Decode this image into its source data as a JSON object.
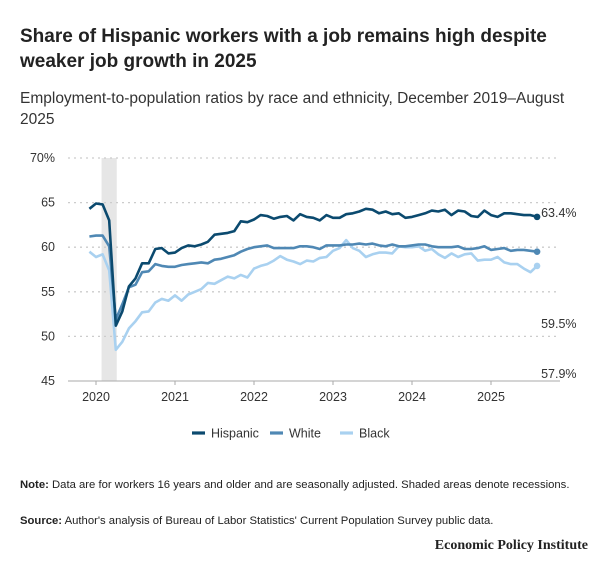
{
  "title": "Share of Hispanic workers with a job remains high despite weaker job growth in 2025",
  "subtitle": "Employment-to-population ratios by race and ethnicity, December 2019–August 2025",
  "note_label": "Note:",
  "note": " Data are for workers 16 years and older and are seasonally adjusted. Shaded areas denote recessions.",
  "source_label": "Source:",
  "source": " Author's analysis of Bureau of Labor Statistics' Current Population Survey public data.",
  "brand": "Economic Policy Institute",
  "chart_data": {
    "type": "line",
    "start": "2019-12",
    "end": "2025-08",
    "ylim": [
      45,
      70
    ],
    "yticks": [
      {
        "v": 70,
        "label": "70%"
      },
      {
        "v": 65,
        "label": "65"
      },
      {
        "v": 60,
        "label": "60"
      },
      {
        "v": 55,
        "label": "55"
      },
      {
        "v": 50,
        "label": "50"
      },
      {
        "v": 45,
        "label": "45"
      }
    ],
    "xticks": [
      "2020",
      "2021",
      "2022",
      "2023",
      "2024",
      "2025"
    ],
    "recession": {
      "start": "2020-02",
      "end": "2020-04"
    },
    "grid": true,
    "legend": "bottom",
    "series": [
      {
        "name": "Hispanic",
        "color": "#0b4a6f",
        "end_label": "63.4%",
        "values": [
          64.3,
          64.9,
          64.8,
          63.0,
          51.2,
          52.8,
          55.6,
          56.5,
          58.2,
          58.2,
          59.8,
          59.9,
          59.3,
          59.4,
          59.9,
          60.2,
          60.1,
          60.3,
          60.6,
          61.4,
          61.5,
          61.6,
          61.8,
          62.9,
          62.8,
          63.1,
          63.6,
          63.5,
          63.2,
          63.4,
          63.5,
          63.0,
          63.7,
          63.4,
          63.3,
          63.0,
          63.6,
          63.3,
          63.3,
          63.7,
          63.8,
          64.0,
          64.3,
          64.2,
          63.8,
          64.0,
          63.7,
          63.8,
          63.3,
          63.4,
          63.6,
          63.8,
          64.1,
          64.0,
          64.2,
          63.6,
          64.1,
          64.0,
          63.5,
          63.4,
          64.1,
          63.6,
          63.4,
          63.8,
          63.8,
          63.7,
          63.6,
          63.6,
          63.4
        ]
      },
      {
        "name": "White",
        "color": "#4f88b4",
        "end_label": "59.5%",
        "values": [
          61.2,
          61.3,
          61.3,
          60.1,
          51.9,
          53.6,
          55.5,
          55.8,
          57.2,
          57.3,
          58.1,
          57.9,
          57.8,
          57.8,
          58.0,
          58.1,
          58.2,
          58.3,
          58.2,
          58.6,
          58.7,
          58.9,
          59.1,
          59.5,
          59.8,
          60.0,
          60.1,
          60.2,
          59.9,
          59.9,
          59.9,
          59.9,
          60.1,
          60.1,
          60.0,
          59.8,
          60.2,
          60.2,
          60.2,
          60.3,
          60.3,
          60.4,
          60.3,
          60.4,
          60.2,
          60.1,
          60.3,
          60.1,
          60.1,
          60.2,
          60.3,
          60.3,
          60.1,
          60.0,
          60.0,
          60.0,
          60.1,
          59.8,
          59.8,
          59.9,
          60.1,
          59.7,
          59.8,
          59.9,
          59.6,
          59.7,
          59.7,
          59.6,
          59.5
        ]
      },
      {
        "name": "Black",
        "color": "#a9d1f0",
        "end_label": "57.9%",
        "values": [
          59.5,
          58.9,
          59.2,
          57.4,
          48.5,
          49.4,
          50.9,
          51.7,
          52.7,
          52.8,
          53.8,
          54.2,
          54.0,
          54.6,
          54.0,
          54.7,
          55.0,
          55.3,
          56.0,
          55.9,
          56.3,
          56.7,
          56.5,
          56.9,
          56.6,
          57.6,
          57.9,
          58.1,
          58.5,
          59.0,
          58.6,
          58.4,
          58.1,
          58.5,
          58.4,
          58.8,
          58.9,
          59.6,
          59.9,
          60.8,
          59.9,
          59.6,
          58.9,
          59.2,
          59.4,
          59.4,
          59.3,
          60.1,
          60.0,
          60.0,
          60.1,
          59.6,
          59.8,
          59.2,
          58.8,
          59.3,
          58.9,
          59.2,
          59.3,
          58.5,
          58.6,
          58.6,
          58.9,
          58.3,
          58.1,
          58.1,
          57.6,
          57.2,
          57.9
        ]
      }
    ]
  }
}
